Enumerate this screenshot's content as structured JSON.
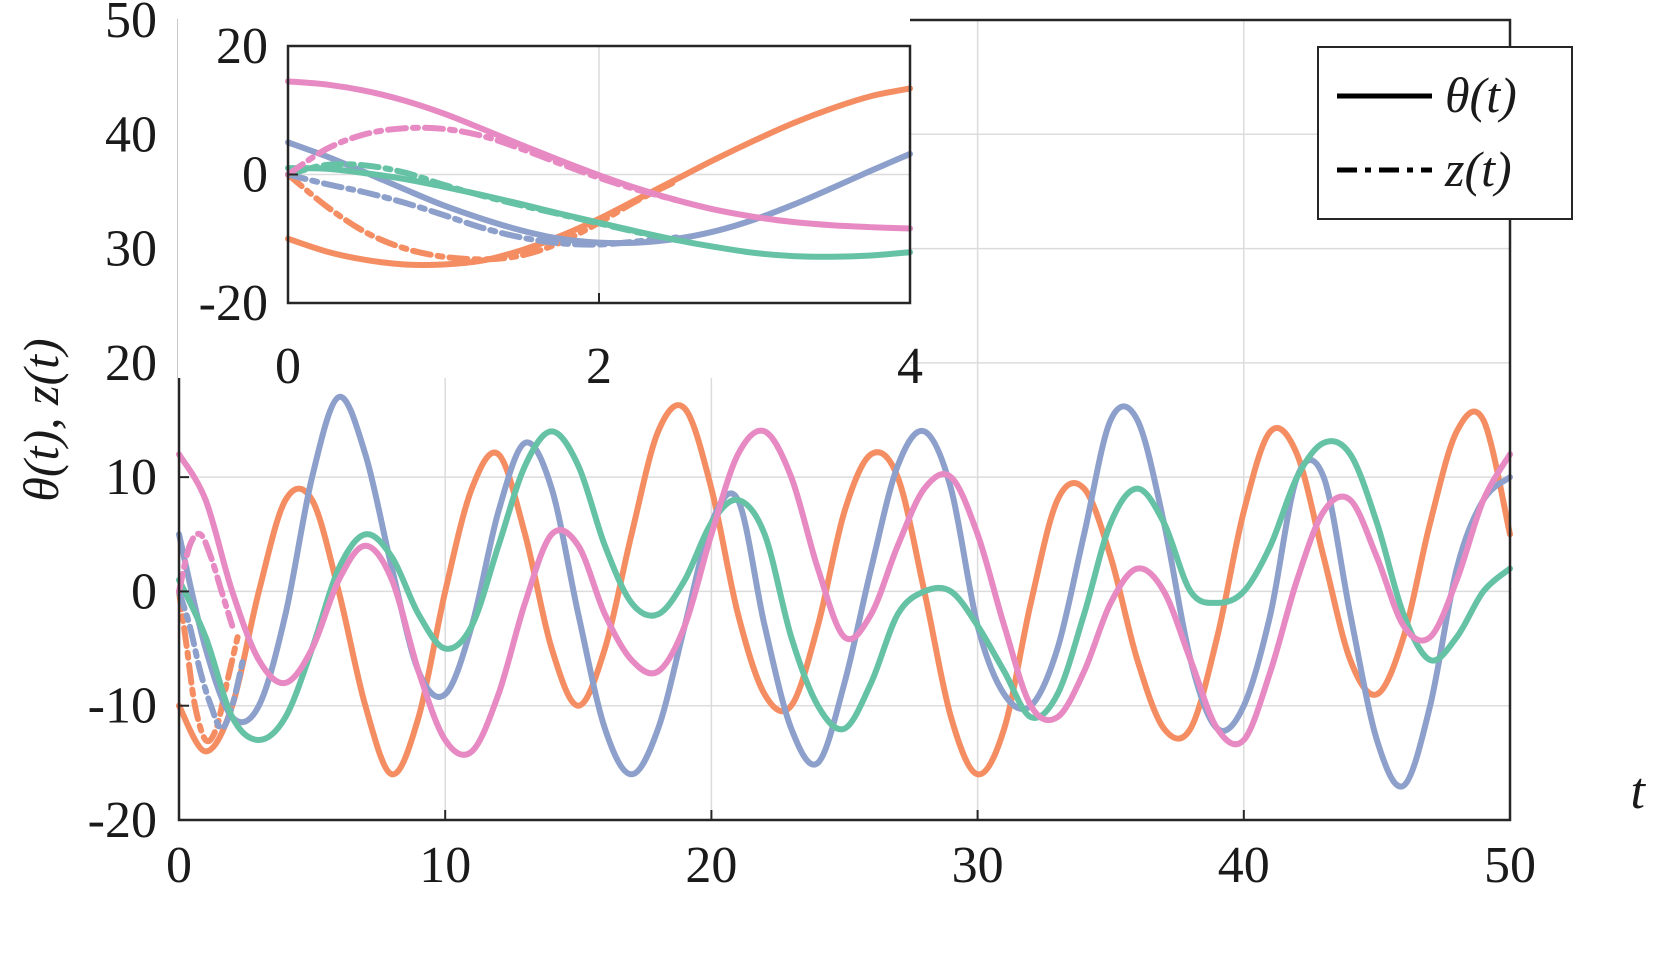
{
  "chart_data": [
    {
      "type": "line",
      "title": "",
      "xlabel": "t",
      "ylabel": "θ(t), z(t)",
      "xlim": [
        0,
        50
      ],
      "ylim": [
        -20,
        50
      ],
      "xticks": [
        "0",
        "10",
        "20",
        "30",
        "40",
        "50"
      ],
      "yticks": [
        "-20",
        "-10",
        "0",
        "10",
        "20",
        "30",
        "40",
        "50"
      ],
      "grid": true,
      "legend": {
        "position": "top-right",
        "entries": [
          {
            "label": "θ(t)",
            "style": "solid"
          },
          {
            "label": "z(t)",
            "style": "dash-dot"
          }
        ]
      },
      "colors": {
        "orange": "#f58d63",
        "blue": "#8da0cb",
        "green": "#66c2a5",
        "pink": "#e78ac3"
      },
      "series": [
        {
          "color": "orange",
          "style": "solid",
          "x": [
            0,
            1,
            2,
            3,
            4,
            5,
            6,
            7,
            8,
            9,
            10,
            11,
            12,
            13,
            14,
            15,
            16,
            17,
            18,
            19,
            20,
            21,
            22,
            23,
            24,
            25,
            26,
            27,
            28,
            29,
            30,
            31,
            32,
            33,
            34,
            35,
            36,
            37,
            38,
            39,
            40,
            41,
            42,
            43,
            44,
            45,
            46,
            47,
            48,
            49,
            50
          ],
          "y": [
            -10,
            -14,
            -10,
            0,
            8,
            8,
            0,
            -10,
            -16,
            -11,
            0,
            9,
            12,
            5,
            -5,
            -10,
            -5,
            5,
            14,
            16,
            9,
            -2,
            -9,
            -10,
            -3,
            7,
            12,
            10,
            0,
            -11,
            -16,
            -12,
            -1,
            8,
            9,
            3,
            -6,
            -12,
            -12,
            -4,
            7,
            14,
            12,
            3,
            -6,
            -9,
            -4,
            6,
            14,
            15,
            5
          ]
        },
        {
          "color": "orange",
          "style": "dashdot",
          "x": [
            0,
            0.3,
            0.6,
            1,
            1.4,
            1.8,
            2.2
          ],
          "y": [
            0,
            -5,
            -10,
            -13,
            -12,
            -8,
            -4
          ]
        },
        {
          "color": "blue",
          "style": "solid",
          "x": [
            0,
            1,
            2,
            3,
            4,
            5,
            6,
            7,
            8,
            9,
            10,
            11,
            12,
            13,
            14,
            15,
            16,
            17,
            18,
            19,
            20,
            21,
            22,
            23,
            24,
            25,
            26,
            27,
            28,
            29,
            30,
            31,
            32,
            33,
            34,
            35,
            36,
            37,
            38,
            39,
            40,
            41,
            42,
            43,
            44,
            45,
            46,
            47,
            48,
            49,
            50
          ],
          "y": [
            5,
            -5,
            -11,
            -10,
            -2,
            10,
            17,
            12,
            2,
            -7,
            -9,
            -3,
            7,
            13,
            9,
            -2,
            -12,
            -16,
            -12,
            -3,
            6,
            8,
            -3,
            -12,
            -15,
            -8,
            2,
            11,
            14,
            9,
            -3,
            -9,
            -10,
            -5,
            5,
            15,
            15,
            6,
            -6,
            -12,
            -10,
            -2,
            10,
            10,
            -2,
            -13,
            -17,
            -10,
            2,
            8,
            10
          ]
        },
        {
          "color": "blue",
          "style": "dashdot",
          "x": [
            0,
            0.4,
            0.8,
            1.2,
            1.6,
            2.0,
            2.4
          ],
          "y": [
            0,
            -3,
            -7,
            -10,
            -12,
            -10,
            -6
          ]
        },
        {
          "color": "green",
          "style": "solid",
          "x": [
            0,
            1,
            2,
            3,
            4,
            5,
            6,
            7,
            8,
            9,
            10,
            11,
            12,
            13,
            14,
            15,
            16,
            17,
            18,
            19,
            20,
            21,
            22,
            23,
            24,
            25,
            26,
            27,
            28,
            29,
            30,
            31,
            32,
            33,
            34,
            35,
            36,
            37,
            38,
            39,
            40,
            41,
            42,
            43,
            44,
            45,
            46,
            47,
            48,
            49,
            50
          ],
          "y": [
            1,
            -4,
            -11,
            -13,
            -11,
            -5,
            2,
            5,
            3,
            -2,
            -5,
            -3,
            4,
            11,
            14,
            11,
            4,
            -1,
            -2,
            1,
            6,
            8,
            5,
            -4,
            -10,
            -12,
            -8,
            -2,
            0,
            0,
            -3,
            -7,
            -11,
            -9,
            -2,
            6,
            9,
            6,
            0,
            -1,
            0,
            4,
            10,
            13,
            12,
            6,
            -2,
            -6,
            -4,
            0,
            2
          ]
        },
        {
          "color": "pink",
          "style": "solid",
          "x": [
            0,
            1,
            2,
            3,
            4,
            5,
            6,
            7,
            8,
            9,
            10,
            11,
            12,
            13,
            14,
            15,
            16,
            17,
            18,
            19,
            20,
            21,
            22,
            23,
            24,
            25,
            26,
            27,
            28,
            29,
            30,
            31,
            32,
            33,
            34,
            35,
            36,
            37,
            38,
            39,
            40,
            41,
            42,
            43,
            44,
            45,
            46,
            47,
            48,
            49,
            50
          ],
          "y": [
            12,
            8,
            0,
            -6,
            -8,
            -5,
            1,
            4,
            1,
            -7,
            -13,
            -14,
            -9,
            -1,
            5,
            4,
            -2,
            -6,
            -7,
            -3,
            5,
            12,
            14,
            10,
            2,
            -4,
            -2,
            4,
            9,
            10,
            5,
            -3,
            -10,
            -11,
            -7,
            -1,
            2,
            0,
            -6,
            -12,
            -13,
            -7,
            1,
            7,
            8,
            3,
            -3,
            -4,
            1,
            8,
            12
          ]
        },
        {
          "color": "pink",
          "style": "dashdot",
          "x": [
            0,
            0.4,
            0.8,
            1.2,
            1.6,
            2.0
          ],
          "y": [
            0,
            4,
            5,
            3,
            0,
            -3
          ]
        }
      ]
    },
    {
      "type": "line",
      "title": "",
      "inset": true,
      "xlim": [
        0,
        4
      ],
      "ylim": [
        -20,
        20
      ],
      "xticks": [
        "0",
        "2",
        "4"
      ],
      "yticks": [
        "-20",
        "0",
        "20"
      ],
      "grid": true,
      "series": [
        {
          "color": "orange",
          "style": "solid",
          "x": [
            0,
            0.25,
            0.5,
            0.75,
            1,
            1.25,
            1.5,
            1.75,
            2,
            2.25,
            2.5,
            2.75,
            3,
            3.25,
            3.5,
            3.75,
            4
          ],
          "y": [
            -10,
            -12,
            -13.3,
            -14,
            -14,
            -13.4,
            -11.8,
            -9.6,
            -6.9,
            -3.8,
            -0.7,
            2.4,
            5.3,
            8,
            10.3,
            12.2,
            13.4
          ]
        },
        {
          "color": "orange",
          "style": "dashdot",
          "x": [
            0,
            0.25,
            0.5,
            0.75,
            1,
            1.25,
            1.5,
            1.75,
            2,
            2.25,
            2.5
          ],
          "y": [
            0,
            -5,
            -9,
            -11.5,
            -12.8,
            -13.2,
            -12.6,
            -10.6,
            -7.5,
            -4,
            -1
          ]
        },
        {
          "color": "blue",
          "style": "solid",
          "x": [
            0,
            0.25,
            0.5,
            0.75,
            1,
            1.25,
            1.5,
            1.75,
            2,
            2.25,
            2.5,
            2.75,
            3,
            3.25,
            3.5,
            3.75,
            4
          ],
          "y": [
            5,
            2.8,
            0.3,
            -2.3,
            -4.8,
            -6.9,
            -8.7,
            -10,
            -10.6,
            -10.6,
            -10,
            -8.8,
            -7,
            -4.7,
            -2.1,
            0.6,
            3.2
          ]
        },
        {
          "color": "blue",
          "style": "dashdot",
          "x": [
            0,
            0.25,
            0.5,
            0.75,
            1,
            1.25,
            1.5,
            1.75,
            2,
            2.25,
            2.5
          ],
          "y": [
            0,
            -1.5,
            -2.8,
            -4.4,
            -6.3,
            -8.3,
            -9.8,
            -10.7,
            -10.9,
            -10.4,
            -9.8
          ]
        },
        {
          "color": "green",
          "style": "solid",
          "x": [
            0,
            0.25,
            0.5,
            0.75,
            1,
            1.25,
            1.5,
            1.75,
            2,
            2.25,
            2.5,
            2.75,
            3,
            3.25,
            3.5,
            3.75,
            4
          ],
          "y": [
            1,
            0.9,
            0.2,
            -0.7,
            -1.9,
            -3.2,
            -4.6,
            -6.1,
            -7.5,
            -8.9,
            -10.2,
            -11.3,
            -12.2,
            -12.7,
            -12.8,
            -12.6,
            -12.1
          ]
        },
        {
          "color": "green",
          "style": "dashdot",
          "x": [
            0,
            0.25,
            0.5,
            0.75,
            1,
            1.25,
            1.5,
            1.75,
            2,
            2.25,
            2.5
          ],
          "y": [
            0,
            1.5,
            1.4,
            0.3,
            -1.6,
            -3.3,
            -4.8,
            -6.2,
            -7.6,
            -9,
            -10.2
          ]
        },
        {
          "color": "pink",
          "style": "solid",
          "x": [
            0,
            0.25,
            0.5,
            0.75,
            1,
            1.25,
            1.5,
            1.75,
            2,
            2.25,
            2.5,
            2.75,
            3,
            3.25,
            3.5,
            3.75,
            4
          ],
          "y": [
            14.5,
            14,
            13,
            11.5,
            9.5,
            7.1,
            4.6,
            2.2,
            -0.1,
            -2.2,
            -4,
            -5.5,
            -6.6,
            -7.4,
            -7.9,
            -8.2,
            -8.4
          ]
        },
        {
          "color": "pink",
          "style": "dashdot",
          "x": [
            0,
            0.25,
            0.5,
            0.75,
            1,
            1.25,
            1.5,
            1.75,
            2,
            2.25,
            2.5
          ],
          "y": [
            0,
            4,
            6.3,
            7.2,
            7.1,
            6,
            4,
            1.7,
            -0.5,
            -2.4,
            -4
          ]
        }
      ]
    }
  ]
}
